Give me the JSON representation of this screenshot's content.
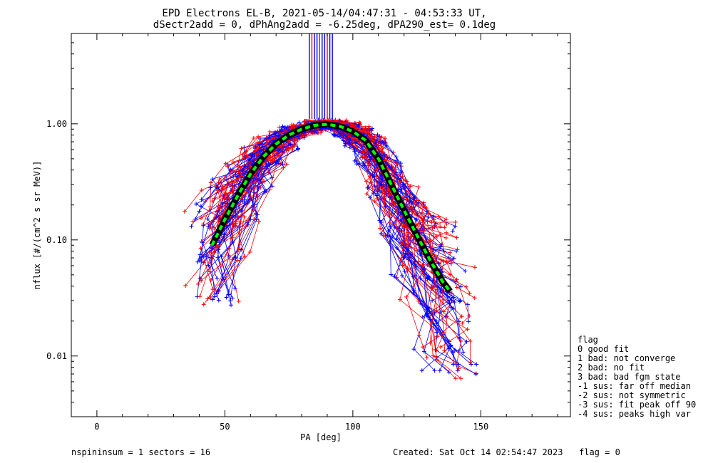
{
  "chart_data": {
    "type": "line",
    "title": [
      "EPD Electrons EL-B, 2021-05-14/04:47:31 - 04:53:33 UT,",
      "dSectr2add = 0, dPhAng2add = -6.25deg, dPA290_est=   0.1deg"
    ],
    "xlabel": "PA [deg]",
    "ylabel": "nflux [#/(cm^2 s sr MeV)]",
    "xlim": [
      -10,
      185
    ],
    "ylim": [
      0.003,
      6.0
    ],
    "yscale": "log",
    "grid": false,
    "x_ticks": [
      {
        "value": 0,
        "label": "0"
      },
      {
        "value": 50,
        "label": "50"
      },
      {
        "value": 100,
        "label": "100"
      },
      {
        "value": 150,
        "label": "150"
      }
    ],
    "y_ticks": [
      {
        "value": 0.01,
        "label": "0.01"
      },
      {
        "value": 0.1,
        "label": "0.10"
      },
      {
        "value": 1.0,
        "label": "1.00"
      }
    ],
    "series_colors": {
      "red": "#ff0000",
      "blue": "#0000ff",
      "fit": "#00ff00",
      "median": "#000000"
    },
    "median_curve": {
      "x": [
        45,
        50,
        55,
        60,
        65,
        70,
        75,
        80,
        85,
        90,
        95,
        100,
        105,
        110,
        115,
        120,
        125,
        130,
        135,
        138
      ],
      "y": [
        0.09,
        0.15,
        0.24,
        0.37,
        0.52,
        0.67,
        0.8,
        0.9,
        0.97,
        0.99,
        0.95,
        0.86,
        0.72,
        0.5,
        0.3,
        0.18,
        0.11,
        0.068,
        0.044,
        0.036
      ]
    },
    "peak_bars_x": [
      83,
      84,
      85,
      86,
      87,
      88,
      89,
      90,
      91,
      92
    ],
    "peak_bars_y": [
      1.1,
      6.0
    ],
    "legend": {
      "title": "flag",
      "entries": [
        " 0 good fit",
        " 1 bad: not converge",
        " 2 bad: no fit",
        " 3 bad: bad fgm state",
        "-1 sus: far off median",
        "-2 sus: not symmetric",
        "-3 sus: fit peak off 90",
        "-4 sus: peaks high var"
      ]
    }
  },
  "footer": {
    "left": "nspininsum =  1  sectors = 16",
    "created": "Created: Sat Oct 14 02:54:47 2023",
    "flag": "flag = 0"
  }
}
